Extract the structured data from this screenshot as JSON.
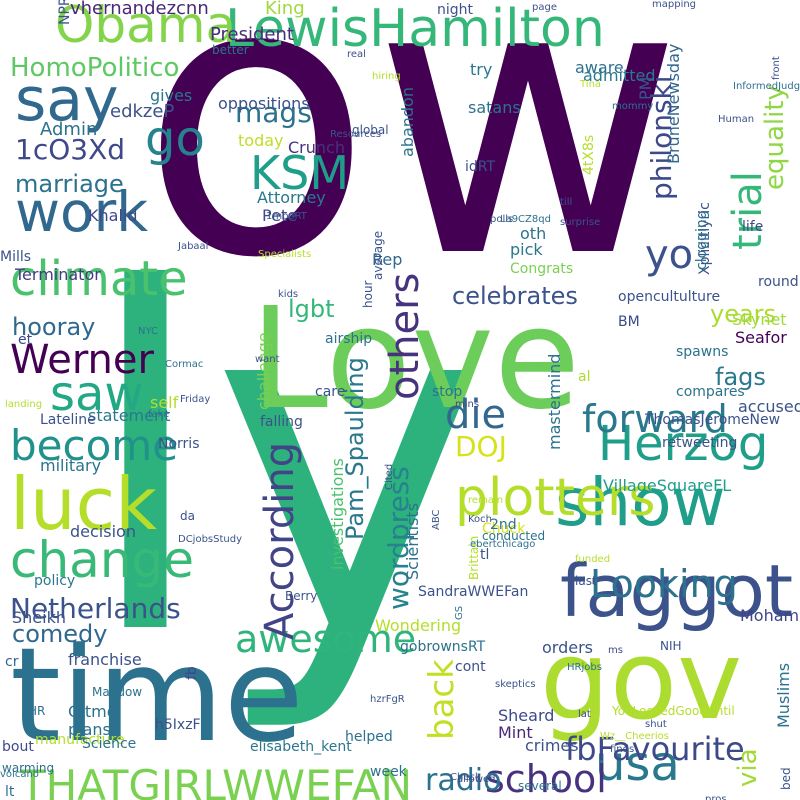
{
  "words": [
    {
      "text": "ow",
      "color": "#440154"
    },
    {
      "text": "ly",
      "color": "#2db27d"
    },
    {
      "text": "Love",
      "color": "#6ccd5a"
    },
    {
      "text": "time",
      "color": "#2c728e"
    },
    {
      "text": "gov",
      "color": "#addc30"
    },
    {
      "text": "LewisHamilton",
      "color": "#35b779"
    },
    {
      "text": "faggot",
      "color": "#3b528b"
    },
    {
      "text": "Obama",
      "color": "#84d44b"
    },
    {
      "text": "say",
      "color": "#31688e"
    },
    {
      "text": "work",
      "color": "#31688e"
    },
    {
      "text": "luck",
      "color": "#b5de2b"
    },
    {
      "text": "show",
      "color": "#1f9e89"
    },
    {
      "text": "change",
      "color": "#38b977"
    },
    {
      "text": "climate",
      "color": "#4ac16d"
    },
    {
      "text": "become",
      "color": "#21918c"
    },
    {
      "text": "awesome",
      "color": "#2fb47c"
    },
    {
      "text": "Werner",
      "color": "#440154"
    },
    {
      "text": "According",
      "color": "#414487"
    },
    {
      "text": "others",
      "color": "#46327e"
    },
    {
      "text": "plotters",
      "color": "#b5de2b"
    },
    {
      "text": "Herzog",
      "color": "#1f9e89"
    },
    {
      "text": "KSM",
      "color": "#1f9e89"
    },
    {
      "text": "go",
      "color": "#26828e"
    },
    {
      "text": "saw",
      "color": "#22a884"
    },
    {
      "text": "die",
      "color": "#31688e"
    },
    {
      "text": "yo",
      "color": "#3b528b"
    },
    {
      "text": "trial",
      "color": "#35b779"
    },
    {
      "text": "usa",
      "color": "#2a788e"
    },
    {
      "text": "school",
      "color": "#46327e"
    },
    {
      "text": "THATGIRLWWEFAN",
      "color": "#7ad151"
    },
    {
      "text": "fbFavourite",
      "color": "#3e4989"
    },
    {
      "text": "forward",
      "color": "#2a788e"
    },
    {
      "text": "Looking",
      "color": "#2c728e"
    },
    {
      "text": "Netherlands",
      "color": "#3b528b"
    },
    {
      "text": "comedy",
      "color": "#31688e"
    },
    {
      "text": "back",
      "color": "#c2df23"
    },
    {
      "text": "wordpress",
      "color": "#26828e"
    },
    {
      "text": "Pam_Spaulding",
      "color": "#2a788e"
    },
    {
      "text": "DOJ",
      "color": "#d8e219"
    },
    {
      "text": "radio",
      "color": "#2c728e"
    },
    {
      "text": "via",
      "color": "#a2da37"
    },
    {
      "text": "HomoPolitico",
      "color": "#5ec962"
    },
    {
      "text": "mags",
      "color": "#2c728e"
    },
    {
      "text": "1cO3Xd",
      "color": "#3e4989"
    },
    {
      "text": "marriage",
      "color": "#2c728e"
    },
    {
      "text": "philonski",
      "color": "#3e4989"
    },
    {
      "text": "equality",
      "color": "#8fd744"
    },
    {
      "text": "celebrates",
      "color": "#3b528b"
    },
    {
      "text": "lgbt",
      "color": "#35b779"
    },
    {
      "text": "years",
      "color": "#addc30"
    },
    {
      "text": "fags",
      "color": "#2a788e"
    },
    {
      "text": "hooray",
      "color": "#31688e"
    },
    {
      "text": "vhernandezcnn",
      "color": "#482878"
    },
    {
      "text": "President",
      "color": "#472d7b"
    },
    {
      "text": "King",
      "color": "#9fda3a"
    },
    {
      "text": "Admin",
      "color": "#2c728e"
    },
    {
      "text": "edkzeP",
      "color": "#3b528b"
    },
    {
      "text": "gives",
      "color": "#2a788e"
    },
    {
      "text": "oppositions",
      "color": "#3b528b"
    },
    {
      "text": "today",
      "color": "#bddf26"
    },
    {
      "text": "Crunch",
      "color": "#46327e"
    },
    {
      "text": "Attorney",
      "color": "#2a788e"
    },
    {
      "text": "Pete",
      "color": "#3e4989"
    },
    {
      "text": "Khalid",
      "color": "#3e4989"
    },
    {
      "text": "Terminator",
      "color": "#443a83"
    },
    {
      "text": "Rep",
      "color": "#31688e"
    },
    {
      "text": "oth",
      "color": "#2c728e"
    },
    {
      "text": "pick",
      "color": "#2a788e"
    },
    {
      "text": "Congrats",
      "color": "#7ad151"
    },
    {
      "text": "Skynet",
      "color": "#9fda3a"
    },
    {
      "text": "Seafor",
      "color": "#440154"
    },
    {
      "text": "accused",
      "color": "#3b528b"
    },
    {
      "text": "VillageSquareFL",
      "color": "#1f9e89"
    },
    {
      "text": "military",
      "color": "#2c728e"
    },
    {
      "text": "statement",
      "color": "#2a788e"
    },
    {
      "text": "self",
      "color": "#b5de2b"
    },
    {
      "text": "decision",
      "color": "#3b528b"
    },
    {
      "text": "Sheikh",
      "color": "#3b528b"
    },
    {
      "text": "franchise",
      "color": "#3b528b"
    },
    {
      "text": "Gitmo",
      "color": "#2c728e"
    },
    {
      "text": "plans",
      "color": "#2c728e"
    },
    {
      "text": "Mohammed",
      "color": "#414487"
    },
    {
      "text": "orders",
      "color": "#3b528b"
    },
    {
      "text": "Muslims",
      "color": "#2c728e"
    },
    {
      "text": "Wondering",
      "color": "#b5de2b"
    },
    {
      "text": "Scientists",
      "color": "#2c728e"
    },
    {
      "text": "crimes",
      "color": "#3b528b"
    },
    {
      "text": "Mint",
      "color": "#482878"
    },
    {
      "text": "Sheard",
      "color": "#3e4989"
    },
    {
      "text": "investigations",
      "color": "#4ac16d"
    },
    {
      "text": "mastermind",
      "color": "#2c728e"
    },
    {
      "text": "challenge",
      "color": "#7ad151"
    },
    {
      "text": "abandon",
      "color": "#2c728e"
    },
    {
      "text": "satans",
      "color": "#2c728e"
    },
    {
      "text": "admitted",
      "color": "#2a788e"
    },
    {
      "text": "aware",
      "color": "#2c728e"
    },
    {
      "text": "PM",
      "color": "#3b528b"
    },
    {
      "text": "BruneNewsday",
      "color": "#31688e"
    },
    {
      "text": "try",
      "color": "#2a788e"
    },
    {
      "text": "idRT",
      "color": "#3b528b"
    },
    {
      "text": "4tX8s",
      "color": "#b5de2b"
    },
    {
      "text": "Xplicitlyric",
      "color": "#3b528b"
    },
    {
      "text": "life",
      "color": "#3e4989"
    },
    {
      "text": "round",
      "color": "#3b528b"
    },
    {
      "text": "clogging",
      "color": "#2c728e"
    },
    {
      "text": "opencultulture",
      "color": "#3b528b"
    },
    {
      "text": "BM",
      "color": "#3e4989"
    },
    {
      "text": "spawns",
      "color": "#2c728e"
    },
    {
      "text": "compares",
      "color": "#2c728e"
    },
    {
      "text": "al",
      "color": "#addc30"
    },
    {
      "text": "ThomasJeromeNew",
      "color": "#3b528b"
    },
    {
      "text": "retweeting",
      "color": "#3b528b"
    },
    {
      "text": "Chuck",
      "color": "#d8e219"
    },
    {
      "text": "tl",
      "color": "#3b528b"
    },
    {
      "text": "2nd",
      "color": "#2c728e"
    },
    {
      "text": "stop",
      "color": "#2c728e"
    },
    {
      "text": "care",
      "color": "#3b528b"
    },
    {
      "text": "falling",
      "color": "#3b528b"
    },
    {
      "text": "Lateline",
      "color": "#3b528b"
    },
    {
      "text": "Norris",
      "color": "#3b528b"
    },
    {
      "text": "airship",
      "color": "#2c728e"
    },
    {
      "text": "et",
      "color": "#3e4989"
    },
    {
      "text": "Mills",
      "color": "#3b528b"
    },
    {
      "text": "manufacture",
      "color": "#b5de2b"
    },
    {
      "text": "policy",
      "color": "#2a788e"
    },
    {
      "text": "Science",
      "color": "#2c728e"
    },
    {
      "text": "cr",
      "color": "#31688e"
    },
    {
      "text": "lt",
      "color": "#2c728e"
    },
    {
      "text": "bout",
      "color": "#3e4989"
    },
    {
      "text": "warming",
      "color": "#2c728e"
    },
    {
      "text": "volcano",
      "color": "#2c728e"
    },
    {
      "text": "week",
      "color": "#2c728e"
    },
    {
      "text": "Check",
      "color": "#3b528b"
    },
    {
      "text": "helped",
      "color": "#2c728e"
    },
    {
      "text": "elisabeth_kent",
      "color": "#2a788e"
    },
    {
      "text": "fb",
      "color": "#3e4989"
    },
    {
      "text": "HR",
      "color": "#2c728e"
    },
    {
      "text": "h5IxzF",
      "color": "#3b528b"
    },
    {
      "text": "Maddow",
      "color": "#2c728e"
    },
    {
      "text": "da",
      "color": "#3b528b"
    },
    {
      "text": "DCjobsStudy",
      "color": "#3b528b"
    },
    {
      "text": "Berry",
      "color": "#3b528b"
    },
    {
      "text": "cont",
      "color": "#3b528b"
    },
    {
      "text": "gobrownsRT",
      "color": "#2c728e"
    },
    {
      "text": "SandraWWEFan",
      "color": "#3b528b"
    },
    {
      "text": "Brittain",
      "color": "#b5de2b"
    },
    {
      "text": "allowed",
      "color": "#3e4989"
    },
    {
      "text": "several",
      "color": "#2c728e"
    },
    {
      "text": "hzrFgR",
      "color": "#3b528b"
    },
    {
      "text": "GS",
      "color": "#2c728e"
    },
    {
      "text": "skeptics",
      "color": "#3b528b"
    },
    {
      "text": "shut",
      "color": "#3b528b"
    },
    {
      "text": "pros",
      "color": "#3b528b"
    },
    {
      "text": "YouLookedGoodUntil",
      "color": "#b5de2b"
    },
    {
      "text": "NIH",
      "color": "#3b528b"
    },
    {
      "text": "bed",
      "color": "#3b528b"
    },
    {
      "text": "lat",
      "color": "#3e4989"
    },
    {
      "text": "last",
      "color": "#3b528b"
    },
    {
      "text": "funded",
      "color": "#b5de2b"
    },
    {
      "text": "Wz__Cheerios",
      "color": "#b5de2b"
    },
    {
      "text": "finds",
      "color": "#3b528b"
    },
    {
      "text": "HRjobs",
      "color": "#2c728e"
    },
    {
      "text": "ms",
      "color": "#3e4989"
    },
    {
      "text": "conducted",
      "color": "#2c728e"
    },
    {
      "text": "Koch",
      "color": "#3b528b"
    },
    {
      "text": "remain",
      "color": "#b5de2b"
    },
    {
      "text": "ebertchicago",
      "color": "#2c728e"
    },
    {
      "text": "ABC",
      "color": "#3b528b"
    },
    {
      "text": "Cited",
      "color": "#3b528b"
    },
    {
      "text": "mins",
      "color": "#3e4989"
    },
    {
      "text": "average",
      "color": "#3b528b"
    },
    {
      "text": "hour",
      "color": "#3b528b"
    },
    {
      "text": "landing",
      "color": "#b5de2b"
    },
    {
      "text": "Cormac",
      "color": "#2c728e"
    },
    {
      "text": "Friday",
      "color": "#3b528b"
    },
    {
      "text": "want",
      "color": "#3b528b"
    },
    {
      "text": "fake",
      "color": "#2c728e"
    },
    {
      "text": "NYC",
      "color": "#2c728e"
    },
    {
      "text": "kids",
      "color": "#3b528b"
    },
    {
      "text": "Jabaal",
      "color": "#3b528b"
    },
    {
      "text": "Specialists",
      "color": "#b5de2b"
    },
    {
      "text": "1mboRT",
      "color": "#3b528b"
    },
    {
      "text": "Resources",
      "color": "#3b528b"
    },
    {
      "text": "global",
      "color": "#3b528b"
    },
    {
      "text": "NPR",
      "color": "#3b528b"
    },
    {
      "text": "better",
      "color": "#2c728e"
    },
    {
      "text": "night",
      "color": "#3b528b"
    },
    {
      "text": "page",
      "color": "#3b528b"
    },
    {
      "text": "mapping",
      "color": "#3b528b"
    },
    {
      "text": "real",
      "color": "#3b528b"
    },
    {
      "text": "hiring",
      "color": "#b5de2b"
    },
    {
      "text": "Tina",
      "color": "#b5de2b"
    },
    {
      "text": "mommy",
      "color": "#2c728e"
    },
    {
      "text": "InformedJudgmnt",
      "color": "#2c728e"
    },
    {
      "text": "Human",
      "color": "#3b528b"
    },
    {
      "text": "front",
      "color": "#3b528b"
    },
    {
      "text": "till",
      "color": "#3b528b"
    },
    {
      "text": "La9CZ8qd",
      "color": "#2c728e"
    },
    {
      "text": "polls",
      "color": "#3b528b"
    },
    {
      "text": "surprise",
      "color": "#3b528b"
    }
  ]
}
